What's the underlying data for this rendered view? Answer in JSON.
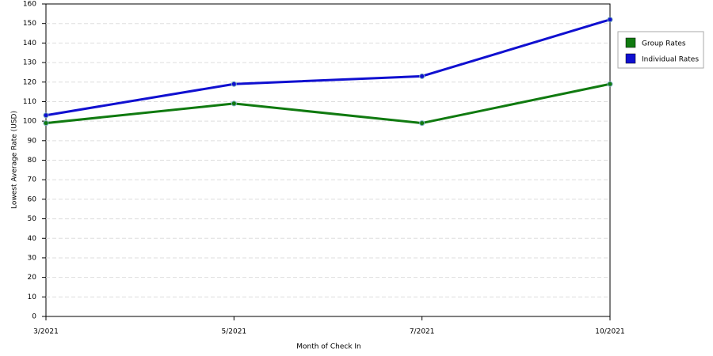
{
  "chart_data": {
    "type": "line",
    "x_label": "Month of Check In",
    "y_label": "Lowest Average Rate (USD)",
    "categories": [
      "3/2021",
      "5/2021",
      "7/2021",
      "10/2021"
    ],
    "series": [
      {
        "name": "Group Rates",
        "color": "#107a10",
        "values": [
          99,
          109,
          99,
          119
        ]
      },
      {
        "name": "Individual Rates",
        "color": "#1010d0",
        "values": [
          103,
          119,
          123,
          152
        ]
      }
    ],
    "ylim": [
      0,
      160
    ],
    "yticks": [
      0,
      10,
      20,
      30,
      40,
      50,
      60,
      70,
      80,
      90,
      100,
      110,
      120,
      130,
      140,
      150,
      160
    ],
    "grid": true
  }
}
